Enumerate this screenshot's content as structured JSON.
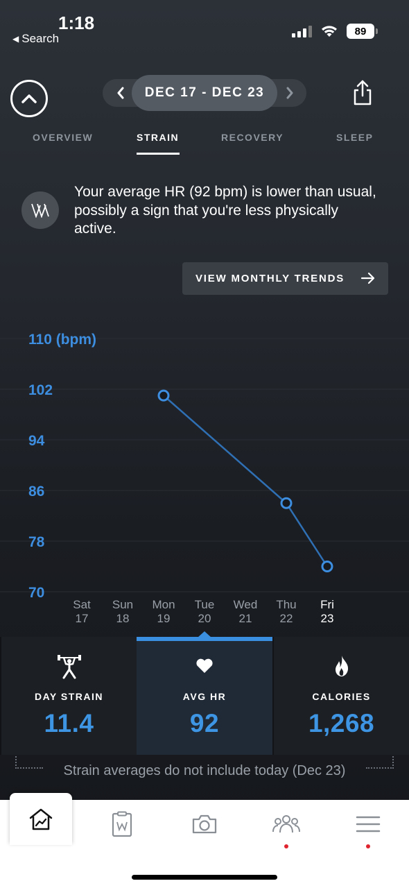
{
  "status_bar": {
    "time": "1:18",
    "back_label": "Search",
    "battery": "89"
  },
  "header": {
    "date_range": "DEC 17 - DEC 23",
    "prev_label": "‹",
    "next_label": "›"
  },
  "tabs": [
    {
      "label": "OVERVIEW",
      "active": false
    },
    {
      "label": "STRAIN",
      "active": true
    },
    {
      "label": "RECOVERY",
      "active": false
    },
    {
      "label": "SLEEP",
      "active": false
    }
  ],
  "insight": {
    "icon_label": "W",
    "text": "Your average HR (92 bpm) is lower than usual, possibly a sign that you're less physically active."
  },
  "trends_button": {
    "label": "VIEW MONTHLY TRENDS"
  },
  "chart_data": {
    "type": "line",
    "y_axis_title": "110 (bpm)",
    "y_ticks": [
      110,
      102,
      94,
      86,
      78,
      70
    ],
    "ylim": [
      70,
      110
    ],
    "x": [
      {
        "day": "Sat",
        "date": "17",
        "highlight": false
      },
      {
        "day": "Sun",
        "date": "18",
        "highlight": false
      },
      {
        "day": "Mon",
        "date": "19",
        "highlight": false
      },
      {
        "day": "Tue",
        "date": "20",
        "highlight": false
      },
      {
        "day": "Wed",
        "date": "21",
        "highlight": false
      },
      {
        "day": "Thu",
        "date": "22",
        "highlight": false
      },
      {
        "day": "Fri",
        "date": "23",
        "highlight": true
      }
    ],
    "series": [
      {
        "values": [
          null,
          null,
          101,
          null,
          null,
          84,
          74
        ]
      }
    ],
    "color": "#3d8ee0",
    "grid": true
  },
  "metrics": [
    {
      "label": "DAY STRAIN",
      "value": "11.4",
      "icon": "weightlifter-icon",
      "active": false
    },
    {
      "label": "AVG HR",
      "value": "92",
      "icon": "heart-icon",
      "active": true
    },
    {
      "label": "CALORIES",
      "value": "1,268",
      "icon": "flame-icon",
      "active": false
    }
  ],
  "note": "Strain averages do not include today (Dec 23)",
  "bottom_nav": [
    {
      "name": "home-trends-icon",
      "active": true,
      "badge": false
    },
    {
      "name": "journal-icon",
      "active": false,
      "badge": false
    },
    {
      "name": "camera-icon",
      "active": false,
      "badge": false
    },
    {
      "name": "community-icon",
      "active": false,
      "badge": true
    },
    {
      "name": "menu-icon",
      "active": false,
      "badge": true
    }
  ],
  "colors": {
    "accent": "#3d95e3",
    "badge": "#e0242f"
  }
}
